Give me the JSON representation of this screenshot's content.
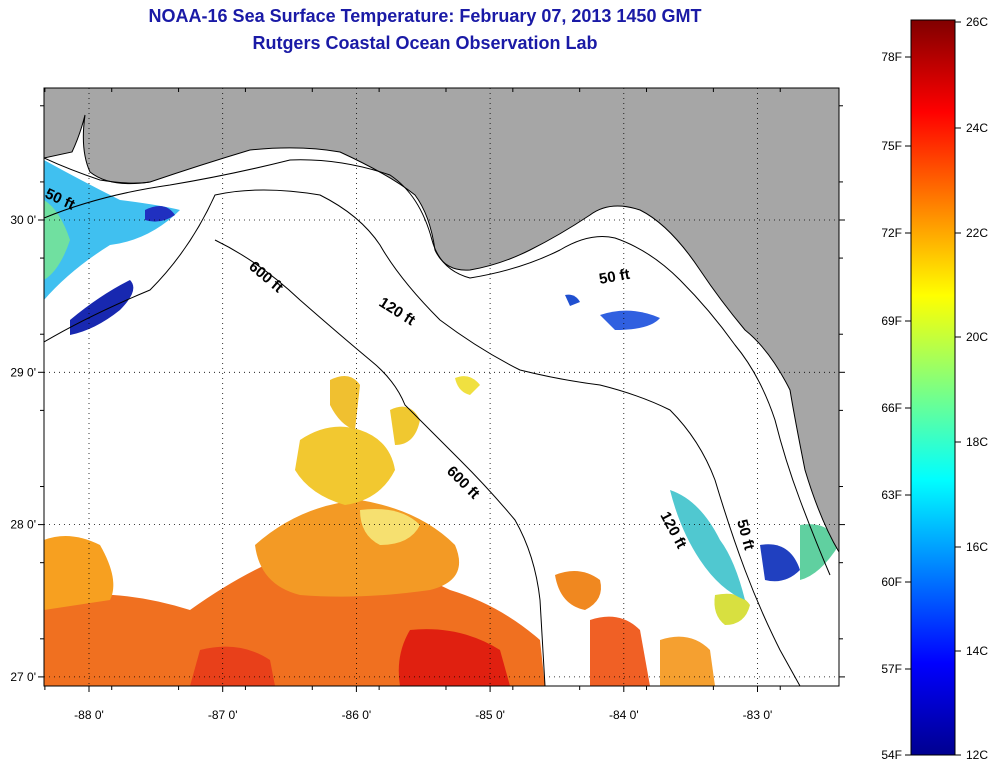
{
  "header": {
    "title": "NOAA-16 Sea Surface Temperature:  February 07, 2013 1450 GMT",
    "subtitle": "Rutgers Coastal Ocean Observation Lab"
  },
  "map": {
    "lon_ticks": [
      {
        "lon": -88,
        "label": "-88 0'"
      },
      {
        "lon": -87,
        "label": "-87 0'"
      },
      {
        "lon": -86,
        "label": "-86 0'"
      },
      {
        "lon": -85,
        "label": "-85 0'"
      },
      {
        "lon": -84,
        "label": "-84 0'"
      },
      {
        "lon": -83,
        "label": "-83 0'"
      }
    ],
    "lat_ticks": [
      {
        "lat": 30,
        "label": "30 0'"
      },
      {
        "lat": 29,
        "label": "29 0'"
      },
      {
        "lat": 28,
        "label": "28 0'"
      },
      {
        "lat": 27,
        "label": "27 0'"
      }
    ],
    "contour_labels": [
      {
        "text": "50 ft"
      },
      {
        "text": "50 ft"
      },
      {
        "text": "50 ft"
      },
      {
        "text": "120 ft"
      },
      {
        "text": "120 ft"
      },
      {
        "text": "600 ft"
      },
      {
        "text": "600 ft"
      }
    ],
    "land_color": "#a6a6a6"
  },
  "colorbar": {
    "fahrenheit": [
      "78F",
      "75F",
      "72F",
      "69F",
      "66F",
      "63F",
      "60F",
      "57F",
      "54F"
    ],
    "celsius": [
      "26C",
      "24C",
      "22C",
      "20C",
      "18C",
      "16C",
      "14C",
      "12C"
    ],
    "range_c": [
      12,
      26
    ]
  }
}
